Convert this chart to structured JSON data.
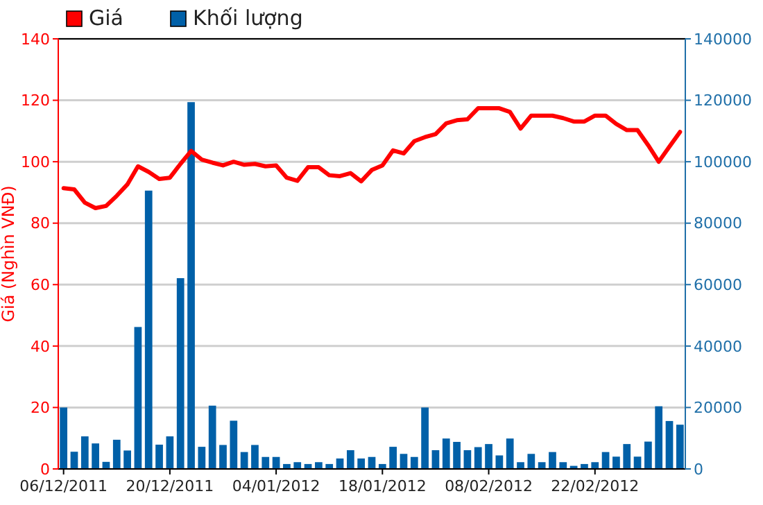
{
  "chart_data": {
    "type": "bar",
    "ylabel": "Giá (Nghìn VNĐ)",
    "categories": [
      "06/12/2011",
      null,
      null,
      null,
      null,
      null,
      null,
      null,
      null,
      null,
      "20/12/2011",
      null,
      null,
      null,
      null,
      null,
      null,
      null,
      null,
      null,
      "04/01/2012",
      null,
      null,
      null,
      null,
      null,
      null,
      null,
      null,
      null,
      "18/01/2012",
      null,
      null,
      null,
      null,
      null,
      null,
      null,
      null,
      null,
      "08/02/2012",
      null,
      null,
      null,
      null,
      null,
      null,
      null,
      null,
      null,
      "22/02/2012",
      null,
      null,
      null,
      null,
      null,
      null,
      null,
      null
    ],
    "series": [
      {
        "name": "Giá",
        "type": "line",
        "axis": "y",
        "color": "#ff0000",
        "values": [
          91.4,
          91,
          86.7,
          84.9,
          85.6,
          88.9,
          92.6,
          98.5,
          96.7,
          94.4,
          94.8,
          99.3,
          103.5,
          100.7,
          99.7,
          98.8,
          100,
          99,
          99.3,
          98.5,
          98.8,
          94.8,
          93.8,
          98.2,
          98.2,
          95.6,
          95.3,
          96.3,
          93.6,
          97.3,
          98.8,
          103.7,
          102.7,
          106.7,
          108,
          109,
          112.5,
          113.5,
          113.8,
          117.4,
          117.4,
          117.4,
          116.2,
          110.8,
          115,
          115,
          115,
          114.2,
          113.1,
          113.1,
          115,
          115,
          112.3,
          110.3,
          110.3,
          105.4,
          100,
          104.9,
          109.7
        ]
      },
      {
        "name": "Khối lượng",
        "axis": "y2",
        "color": "#0060a8",
        "values": [
          20000,
          5600,
          10600,
          8300,
          2300,
          9500,
          6000,
          46200,
          90600,
          7900,
          10600,
          62100,
          119400,
          7200,
          20600,
          7800,
          15700,
          5500,
          7800,
          3900,
          3900,
          1600,
          2200,
          1600,
          2200,
          1600,
          3400,
          6100,
          3400,
          3900,
          1600,
          7200,
          4900,
          3900,
          20000,
          6100,
          9900,
          8800,
          6100,
          7100,
          8100,
          4400,
          9900,
          2200,
          4900,
          2200,
          5500,
          2200,
          1000,
          1600,
          2200,
          5500,
          4000,
          8100,
          4000,
          8900,
          20400,
          15600,
          14400
        ]
      }
    ],
    "ylim": [
      0,
      140
    ],
    "yticks": [
      0,
      20,
      40,
      60,
      80,
      100,
      120,
      140
    ],
    "y2lim": [
      0,
      140000
    ],
    "y2ticks": [
      0,
      20000,
      40000,
      60000,
      80000,
      100000,
      120000,
      140000
    ],
    "grid": "y",
    "legend": "top left"
  }
}
